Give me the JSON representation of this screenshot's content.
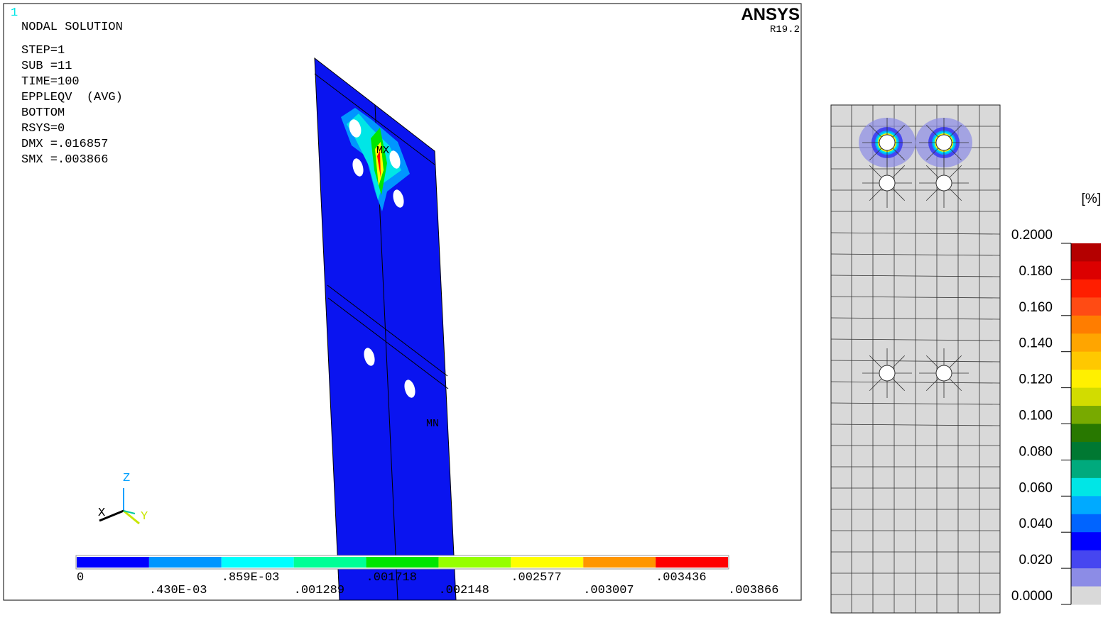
{
  "ansys_view": {
    "window_number": "1",
    "info_lines": [
      "NODAL SOLUTION",
      "STEP=1",
      "SUB =11",
      "TIME=100",
      "EPPLEQV  (AVG)",
      "BOTTOM",
      "RSYS=0",
      "DMX =.016857",
      "SMX =.003866"
    ],
    "brand": "ANSYS",
    "release": "R19.2",
    "max_marker": "MX",
    "min_marker": "MN",
    "triad": {
      "z": "Z",
      "x": "X",
      "y": "Y"
    },
    "legend": {
      "labels": [
        "0",
        ".430E-03",
        ".859E-03",
        ".001289",
        ".001718",
        ".002148",
        ".002577",
        ".003007",
        ".003436",
        ".003866"
      ],
      "colors": [
        "#0000ff",
        "#0096ff",
        "#00ffff",
        "#00ff96",
        "#00e600",
        "#96ff00",
        "#ffff00",
        "#ff9600",
        "#ff0000"
      ]
    }
  },
  "mesh_view": {
    "unit": "[%]",
    "legend": {
      "labels": [
        "0.2000",
        "0.180",
        "0.160",
        "0.140",
        "0.120",
        "0.100",
        "0.080",
        "0.060",
        "0.040",
        "0.020",
        "0.0000"
      ],
      "colors": [
        "#b40000",
        "#dc0000",
        "#ff1e00",
        "#ff4b14",
        "#ff7d00",
        "#ffa500",
        "#ffc800",
        "#fff000",
        "#d2dc00",
        "#78aa00",
        "#287800",
        "#007832",
        "#00aa7d",
        "#00e6e6",
        "#00aaff",
        "#0064ff",
        "#0000ff",
        "#4646f0",
        "#8c8ce6",
        "#d9d9d9"
      ]
    }
  }
}
